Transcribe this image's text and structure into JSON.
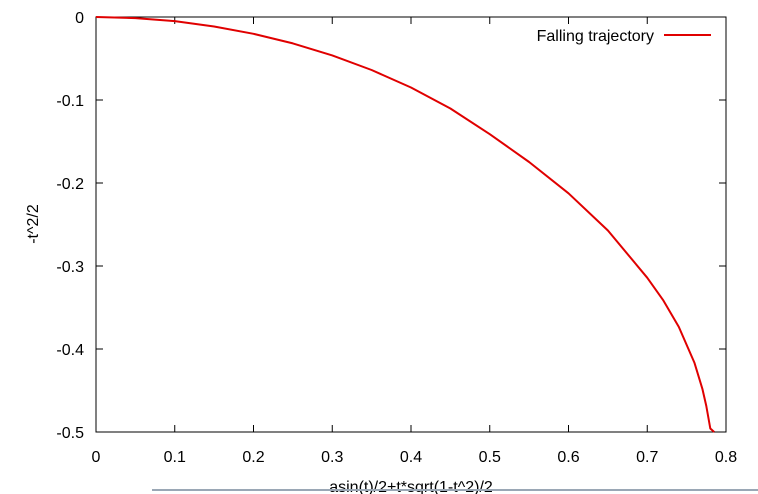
{
  "chart_data": {
    "type": "line",
    "title": "",
    "xlabel": "asin(t)/2+t*sqrt(1-t^2)/2",
    "ylabel": "-t^2/2",
    "xlim": [
      0,
      0.8
    ],
    "ylim": [
      -0.5,
      0
    ],
    "xticks": [
      0,
      0.1,
      0.2,
      0.3,
      0.4,
      0.5,
      0.6,
      0.7,
      0.8
    ],
    "xtick_labels": [
      "0",
      "0.1",
      "0.2",
      "0.3",
      "0.4",
      "0.5",
      "0.6",
      "0.7",
      "0.8"
    ],
    "yticks": [
      0,
      -0.1,
      -0.2,
      -0.3,
      -0.4,
      -0.5
    ],
    "ytick_labels": [
      "0",
      "-0.1",
      "-0.2",
      "-0.3",
      "-0.4",
      "-0.5"
    ],
    "grid": false,
    "legend": "top-right",
    "series": [
      {
        "name": "Falling trajectory",
        "color": "#e00000",
        "x": [
          0,
          0.05,
          0.1,
          0.15,
          0.2,
          0.25,
          0.3,
          0.35,
          0.4,
          0.45,
          0.5,
          0.55,
          0.6,
          0.65,
          0.7,
          0.72,
          0.74,
          0.76,
          0.77,
          0.775,
          0.78,
          0.785
        ],
        "y": [
          0,
          -0.0013,
          -0.005,
          -0.0114,
          -0.0203,
          -0.0318,
          -0.0463,
          -0.0638,
          -0.0849,
          -0.1103,
          -0.1412,
          -0.1747,
          -0.2124,
          -0.2572,
          -0.3141,
          -0.3409,
          -0.3734,
          -0.4167,
          -0.4481,
          -0.4687,
          -0.4958,
          -0.5
        ]
      }
    ]
  }
}
